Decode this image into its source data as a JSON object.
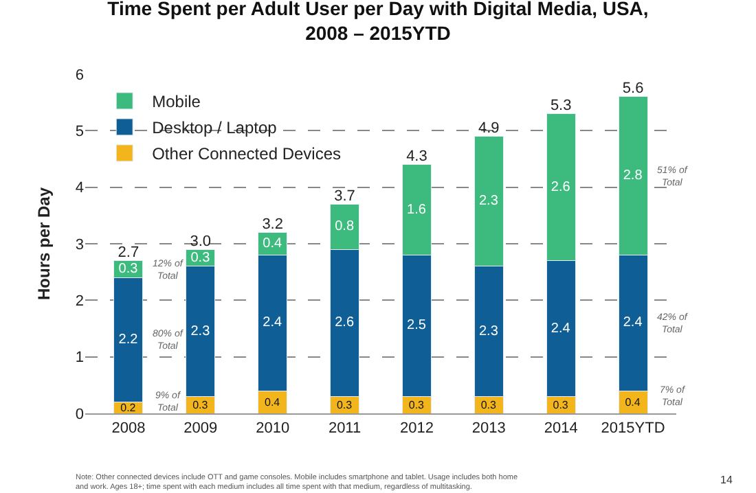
{
  "chart_data": {
    "type": "bar",
    "stacked": true,
    "title": "Time Spent per Adult User per Day with Digital Media, USA,\n2008 – 2015YTD",
    "ylabel": "Hours per Day",
    "categories": [
      "2008",
      "2009",
      "2010",
      "2011",
      "2012",
      "2013",
      "2014",
      "2015YTD"
    ],
    "series": [
      {
        "name": "Other Connected Devices",
        "color": "#f2b61c",
        "values": [
          0.2,
          0.3,
          0.4,
          0.3,
          0.3,
          0.3,
          0.3,
          0.4
        ]
      },
      {
        "name": "Desktop / Laptop",
        "color": "#0f5f96",
        "values": [
          2.2,
          2.3,
          2.4,
          2.6,
          2.5,
          2.3,
          2.4,
          2.4
        ]
      },
      {
        "name": "Mobile",
        "color": "#3dba7e",
        "values": [
          0.3,
          0.3,
          0.4,
          0.8,
          1.6,
          2.3,
          2.6,
          2.8
        ]
      }
    ],
    "totals": [
      "2.7",
      "3.0",
      "3.2",
      "3.7",
      "4.3",
      "4.9",
      "5.3",
      "5.6"
    ],
    "data_labels": true,
    "ylim": [
      0,
      6
    ],
    "yticks": [
      0,
      1,
      2,
      3,
      4,
      5,
      6
    ],
    "grid": "y",
    "legend": "top left",
    "annotations": [
      "12% of\nTotal",
      "80% of\nTotal",
      "9% of\nTotal",
      "51% of\nTotal",
      "42% of\nTotal",
      "7% of\nTotal",
      "Note: Other connected devices include OTT and game consoles. Mobile includes smartphone and tablet. Usage includes both home and work. Ages 18+; time spent with each medium includes all time spent with that medium, regardless of multitasking.",
      "14"
    ]
  }
}
